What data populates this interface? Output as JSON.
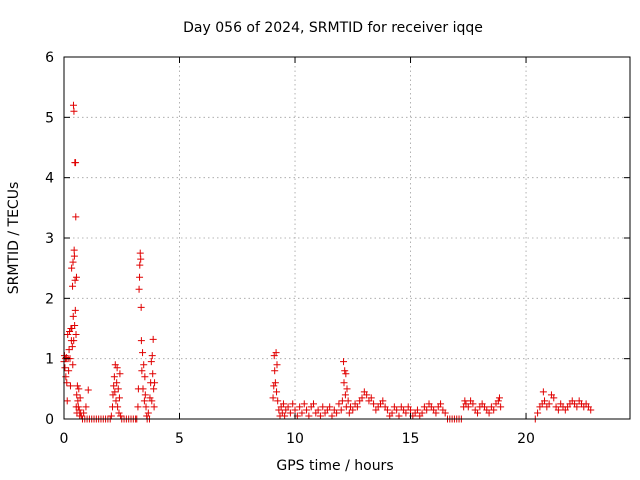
{
  "chart_data": {
    "type": "scatter",
    "title": "Day 056 of 2024, SRMTID for receiver iqqe",
    "xlabel": "GPS time / hours",
    "ylabel": "SRMTID / TECUs",
    "xlim": [
      0,
      24.5
    ],
    "ylim": [
      0,
      6
    ],
    "xticks": [
      0,
      5,
      10,
      15,
      20
    ],
    "yticks": [
      0,
      1,
      2,
      3,
      4,
      5,
      6
    ],
    "grid": true,
    "marker": "+",
    "color": "#e00000",
    "series": [
      {
        "name": "SRMTID",
        "points": [
          [
            0.0,
            0.95
          ],
          [
            0.02,
            1.05
          ],
          [
            0.04,
            0.85
          ],
          [
            0.06,
            1.0
          ],
          [
            0.08,
            0.7
          ],
          [
            0.1,
            1.02
          ],
          [
            0.12,
            0.6
          ],
          [
            0.14,
            0.3
          ],
          [
            0.16,
            1.4
          ],
          [
            0.18,
            1.0
          ],
          [
            0.2,
            0.8
          ],
          [
            0.22,
            1.15
          ],
          [
            0.24,
            1.45
          ],
          [
            0.26,
            1.0
          ],
          [
            0.28,
            0.55
          ],
          [
            0.3,
            1.5
          ],
          [
            0.32,
            1.3
          ],
          [
            0.33,
            2.5
          ],
          [
            0.34,
            1.5
          ],
          [
            0.36,
            1.2
          ],
          [
            0.37,
            2.2
          ],
          [
            0.38,
            0.9
          ],
          [
            0.39,
            2.6
          ],
          [
            0.4,
            1.7
          ],
          [
            0.41,
            5.2
          ],
          [
            0.42,
            1.3
          ],
          [
            0.43,
            5.1
          ],
          [
            0.44,
            2.8
          ],
          [
            0.45,
            2.7
          ],
          [
            0.46,
            1.55
          ],
          [
            0.47,
            4.25
          ],
          [
            0.48,
            2.3
          ],
          [
            0.49,
            1.8
          ],
          [
            0.5,
            4.25
          ],
          [
            0.51,
            3.35
          ],
          [
            0.52,
            1.4
          ],
          [
            0.53,
            0.2
          ],
          [
            0.54,
            2.35
          ],
          [
            0.55,
            0.4
          ],
          [
            0.56,
            0.1
          ],
          [
            0.58,
            0.55
          ],
          [
            0.6,
            0.3
          ],
          [
            0.62,
            0.2
          ],
          [
            0.64,
            0.5
          ],
          [
            0.66,
            0.15
          ],
          [
            0.68,
            0.05
          ],
          [
            0.7,
            0.35
          ],
          [
            0.72,
            0.1
          ],
          [
            0.75,
            0.05
          ],
          [
            0.8,
            0.0
          ],
          [
            0.85,
            0.1
          ],
          [
            0.9,
            0.0
          ],
          [
            0.95,
            0.2
          ],
          [
            1.0,
            0.0
          ],
          [
            1.05,
            0.48
          ],
          [
            1.1,
            0.0
          ],
          [
            1.2,
            0.0
          ],
          [
            1.3,
            0.0
          ],
          [
            1.4,
            0.0
          ],
          [
            1.5,
            0.0
          ],
          [
            1.6,
            0.0
          ],
          [
            1.7,
            0.0
          ],
          [
            1.8,
            0.0
          ],
          [
            1.9,
            0.0
          ],
          [
            2.0,
            0.0
          ],
          [
            2.05,
            0.05
          ],
          [
            2.1,
            0.2
          ],
          [
            2.12,
            0.4
          ],
          [
            2.15,
            0.55
          ],
          [
            2.18,
            0.7
          ],
          [
            2.2,
            0.45
          ],
          [
            2.22,
            0.9
          ],
          [
            2.25,
            0.3
          ],
          [
            2.28,
            0.6
          ],
          [
            2.3,
            0.85
          ],
          [
            2.32,
            0.2
          ],
          [
            2.35,
            0.5
          ],
          [
            2.38,
            0.1
          ],
          [
            2.4,
            0.35
          ],
          [
            2.42,
            0.75
          ],
          [
            2.45,
            0.05
          ],
          [
            2.5,
            0.0
          ],
          [
            2.6,
            0.0
          ],
          [
            2.7,
            0.0
          ],
          [
            2.8,
            0.0
          ],
          [
            2.9,
            0.0
          ],
          [
            3.0,
            0.0
          ],
          [
            3.1,
            0.0
          ],
          [
            3.15,
            0.0
          ],
          [
            3.2,
            0.2
          ],
          [
            3.22,
            0.5
          ],
          [
            3.25,
            2.15
          ],
          [
            3.27,
            2.35
          ],
          [
            3.28,
            2.55
          ],
          [
            3.3,
            2.75
          ],
          [
            3.32,
            2.65
          ],
          [
            3.34,
            1.85
          ],
          [
            3.35,
            1.3
          ],
          [
            3.37,
            0.8
          ],
          [
            3.4,
            1.1
          ],
          [
            3.42,
            0.5
          ],
          [
            3.45,
            0.9
          ],
          [
            3.48,
            0.3
          ],
          [
            3.5,
            0.7
          ],
          [
            3.52,
            0.4
          ],
          [
            3.55,
            0.2
          ],
          [
            3.58,
            0.05
          ],
          [
            3.6,
            0.0
          ],
          [
            3.65,
            0.1
          ],
          [
            3.7,
            0.0
          ],
          [
            3.72,
            0.35
          ],
          [
            3.75,
            0.6
          ],
          [
            3.78,
            0.95
          ],
          [
            3.8,
            0.3
          ],
          [
            3.82,
            1.05
          ],
          [
            3.84,
            0.75
          ],
          [
            3.86,
            1.32
          ],
          [
            3.88,
            0.5
          ],
          [
            3.9,
            0.2
          ],
          [
            3.92,
            0.6
          ],
          [
            9.05,
            0.35
          ],
          [
            9.08,
            0.55
          ],
          [
            9.1,
            1.05
          ],
          [
            9.12,
            0.8
          ],
          [
            9.15,
            0.6
          ],
          [
            9.18,
            1.1
          ],
          [
            9.2,
            0.45
          ],
          [
            9.22,
            0.9
          ],
          [
            9.25,
            0.3
          ],
          [
            9.3,
            0.15
          ],
          [
            9.35,
            0.05
          ],
          [
            9.4,
            0.2
          ],
          [
            9.45,
            0.1
          ],
          [
            9.5,
            0.25
          ],
          [
            9.55,
            0.05
          ],
          [
            9.6,
            0.15
          ],
          [
            9.7,
            0.2
          ],
          [
            9.8,
            0.1
          ],
          [
            9.9,
            0.25
          ],
          [
            10.0,
            0.15
          ],
          [
            10.1,
            0.05
          ],
          [
            10.2,
            0.2
          ],
          [
            10.3,
            0.1
          ],
          [
            10.4,
            0.25
          ],
          [
            10.5,
            0.15
          ],
          [
            10.6,
            0.05
          ],
          [
            10.7,
            0.2
          ],
          [
            10.8,
            0.25
          ],
          [
            10.9,
            0.1
          ],
          [
            11.0,
            0.15
          ],
          [
            11.1,
            0.05
          ],
          [
            11.2,
            0.2
          ],
          [
            11.3,
            0.1
          ],
          [
            11.4,
            0.15
          ],
          [
            11.5,
            0.2
          ],
          [
            11.6,
            0.05
          ],
          [
            11.7,
            0.15
          ],
          [
            11.8,
            0.1
          ],
          [
            11.9,
            0.25
          ],
          [
            12.0,
            0.15
          ],
          [
            12.05,
            0.3
          ],
          [
            12.1,
            0.95
          ],
          [
            12.12,
            0.6
          ],
          [
            12.15,
            0.8
          ],
          [
            12.18,
            0.4
          ],
          [
            12.2,
            0.75
          ],
          [
            12.22,
            0.2
          ],
          [
            12.25,
            0.5
          ],
          [
            12.3,
            0.3
          ],
          [
            12.35,
            0.1
          ],
          [
            12.4,
            0.2
          ],
          [
            12.5,
            0.15
          ],
          [
            12.6,
            0.25
          ],
          [
            12.7,
            0.2
          ],
          [
            12.8,
            0.3
          ],
          [
            12.9,
            0.35
          ],
          [
            13.0,
            0.45
          ],
          [
            13.1,
            0.4
          ],
          [
            13.2,
            0.3
          ],
          [
            13.3,
            0.35
          ],
          [
            13.4,
            0.25
          ],
          [
            13.5,
            0.15
          ],
          [
            13.6,
            0.2
          ],
          [
            13.7,
            0.25
          ],
          [
            13.8,
            0.3
          ],
          [
            13.9,
            0.2
          ],
          [
            14.0,
            0.15
          ],
          [
            14.1,
            0.05
          ],
          [
            14.2,
            0.1
          ],
          [
            14.3,
            0.2
          ],
          [
            14.4,
            0.15
          ],
          [
            14.5,
            0.05
          ],
          [
            14.6,
            0.2
          ],
          [
            14.7,
            0.15
          ],
          [
            14.8,
            0.1
          ],
          [
            14.9,
            0.2
          ],
          [
            15.0,
            0.15
          ],
          [
            15.1,
            0.05
          ],
          [
            15.2,
            0.1
          ],
          [
            15.3,
            0.15
          ],
          [
            15.4,
            0.05
          ],
          [
            15.5,
            0.1
          ],
          [
            15.6,
            0.2
          ],
          [
            15.7,
            0.15
          ],
          [
            15.8,
            0.25
          ],
          [
            15.9,
            0.2
          ],
          [
            16.0,
            0.15
          ],
          [
            16.1,
            0.1
          ],
          [
            16.2,
            0.2
          ],
          [
            16.3,
            0.25
          ],
          [
            16.4,
            0.15
          ],
          [
            16.5,
            0.1
          ],
          [
            16.6,
            0.0
          ],
          [
            16.7,
            0.0
          ],
          [
            16.8,
            0.0
          ],
          [
            16.9,
            0.0
          ],
          [
            17.0,
            0.0
          ],
          [
            17.1,
            0.0
          ],
          [
            17.2,
            0.0
          ],
          [
            17.3,
            0.2
          ],
          [
            17.35,
            0.3
          ],
          [
            17.4,
            0.25
          ],
          [
            17.5,
            0.2
          ],
          [
            17.6,
            0.3
          ],
          [
            17.7,
            0.25
          ],
          [
            17.8,
            0.15
          ],
          [
            17.9,
            0.1
          ],
          [
            18.0,
            0.2
          ],
          [
            18.1,
            0.25
          ],
          [
            18.2,
            0.2
          ],
          [
            18.3,
            0.15
          ],
          [
            18.4,
            0.1
          ],
          [
            18.5,
            0.2
          ],
          [
            18.6,
            0.15
          ],
          [
            18.7,
            0.25
          ],
          [
            18.8,
            0.3
          ],
          [
            18.85,
            0.35
          ],
          [
            18.9,
            0.2
          ],
          [
            20.4,
            0.0
          ],
          [
            20.5,
            0.1
          ],
          [
            20.6,
            0.2
          ],
          [
            20.7,
            0.25
          ],
          [
            20.75,
            0.45
          ],
          [
            20.8,
            0.3
          ],
          [
            20.9,
            0.2
          ],
          [
            21.0,
            0.25
          ],
          [
            21.1,
            0.4
          ],
          [
            21.2,
            0.35
          ],
          [
            21.3,
            0.2
          ],
          [
            21.4,
            0.15
          ],
          [
            21.5,
            0.25
          ],
          [
            21.6,
            0.2
          ],
          [
            21.7,
            0.15
          ],
          [
            21.8,
            0.2
          ],
          [
            21.9,
            0.25
          ],
          [
            22.0,
            0.3
          ],
          [
            22.1,
            0.25
          ],
          [
            22.2,
            0.2
          ],
          [
            22.3,
            0.3
          ],
          [
            22.4,
            0.25
          ],
          [
            22.5,
            0.2
          ],
          [
            22.6,
            0.25
          ],
          [
            22.7,
            0.2
          ],
          [
            22.8,
            0.15
          ]
        ]
      }
    ]
  }
}
